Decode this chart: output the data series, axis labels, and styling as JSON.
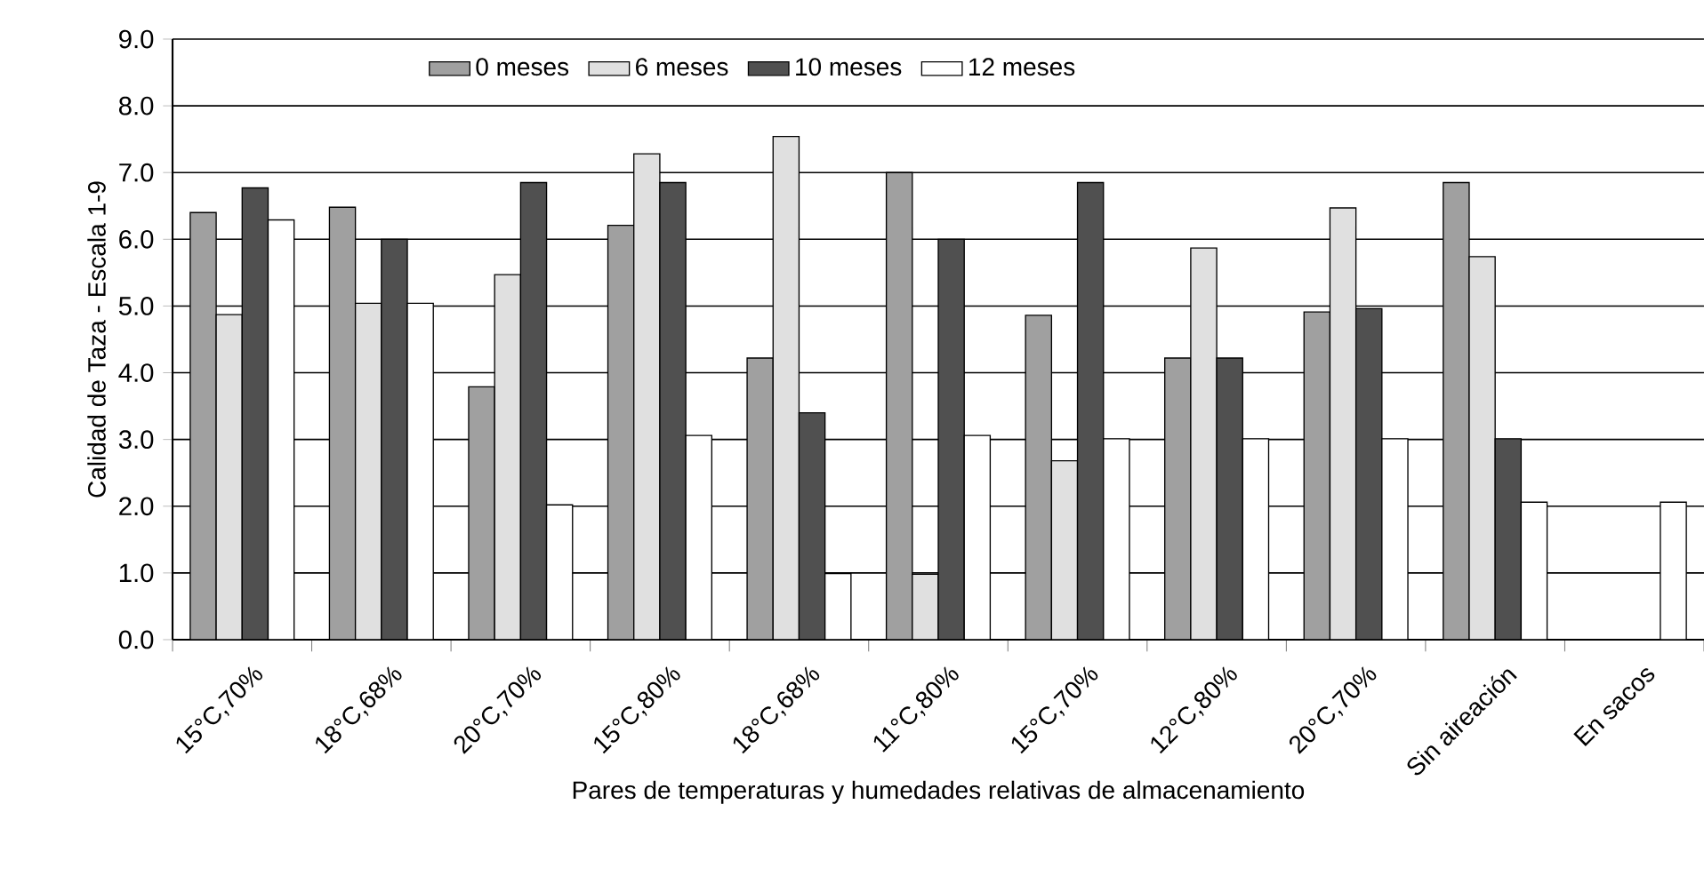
{
  "chart_data": {
    "type": "bar",
    "xlabel": "Pares de temperaturas y humedades relativas de almacenamiento",
    "ylabel": "Calidad de Taza -  Escala 1-9",
    "categories": [
      "15°C,70%",
      "18°C,68%",
      "20°C,70%",
      "15°C,80%",
      "18°C,68%",
      "11°C,80%",
      "15°C,70%",
      "12°C,80%",
      "20°C,70%",
      "Sin aireación",
      "En sacos"
    ],
    "series": [
      {
        "name": "0 meses",
        "color": "#a0a0a0",
        "values": [
          6.4,
          6.48,
          3.79,
          6.21,
          4.22,
          7.0,
          4.86,
          4.22,
          4.91,
          6.85,
          null
        ]
      },
      {
        "name": "6 meses",
        "color": "#e0e0e0",
        "values": [
          4.87,
          5.04,
          5.47,
          7.28,
          7.54,
          0.98,
          2.68,
          5.87,
          6.47,
          5.74,
          null
        ]
      },
      {
        "name": "10 meses",
        "color": "#505050",
        "values": [
          6.77,
          6.0,
          6.85,
          6.85,
          3.4,
          6.0,
          6.85,
          4.22,
          4.96,
          3.01,
          null
        ]
      },
      {
        "name": "12 meses",
        "color": "#ffffff",
        "values": [
          6.29,
          5.04,
          2.02,
          3.06,
          0.99,
          3.06,
          3.01,
          3.01,
          3.01,
          2.06,
          2.06
        ]
      }
    ],
    "ylim": [
      0,
      9
    ],
    "yticks": [
      {
        "value": 0,
        "label": "0.0"
      },
      {
        "value": 1,
        "label": "1.0"
      },
      {
        "value": 2,
        "label": "2.0"
      },
      {
        "value": 3,
        "label": "3.0"
      },
      {
        "value": 4,
        "label": "4.0"
      },
      {
        "value": 5,
        "label": "5.0"
      },
      {
        "value": 6,
        "label": "6.0"
      },
      {
        "value": 7,
        "label": "7.0"
      },
      {
        "value": 8,
        "label": "8.0"
      },
      {
        "value": 9,
        "label": "9.0"
      }
    ],
    "grid": "y",
    "legend": "top"
  }
}
